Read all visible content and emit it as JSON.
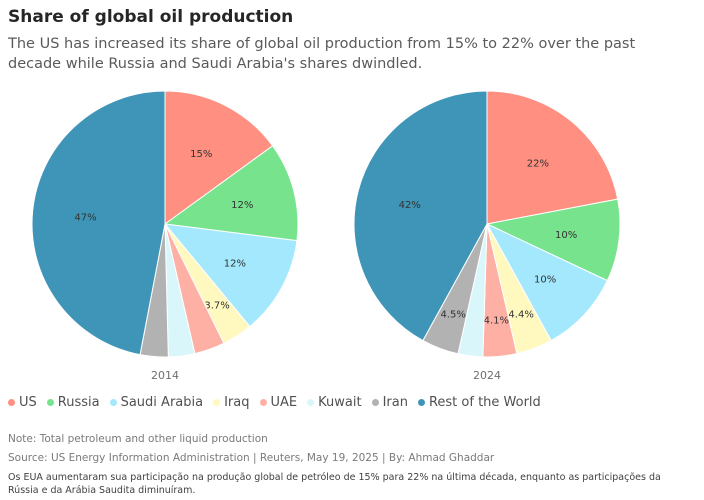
{
  "header": {
    "title": "Share of global oil production",
    "subtitle": "The US has increased its share of global oil production from 15% to 22% over the past decade while Russia and Saudi Arabia's shares dwindled."
  },
  "chart_data": [
    {
      "type": "pie",
      "year_label": "2014",
      "slices": [
        {
          "name": "US",
          "value": 15,
          "label": "15%",
          "color": "#ff8f80"
        },
        {
          "name": "Russia",
          "value": 12,
          "label": "12%",
          "color": "#77e38c"
        },
        {
          "name": "Saudi Arabia",
          "value": 12,
          "label": "12%",
          "color": "#a3e8fd"
        },
        {
          "name": "Iraq",
          "value": 3.7,
          "label": "3.7%",
          "color": "#fff9c0"
        },
        {
          "name": "UAE",
          "value": 3.7,
          "label": "",
          "color": "#ffb0a4"
        },
        {
          "name": "Kuwait",
          "value": 3.2,
          "label": "",
          "color": "#d9f6fb"
        },
        {
          "name": "Iran",
          "value": 3.4,
          "label": "",
          "color": "#b2b2b2"
        },
        {
          "name": "Rest of the World",
          "value": 47,
          "label": "47%",
          "color": "#3f95b7"
        }
      ]
    },
    {
      "type": "pie",
      "year_label": "2024",
      "slices": [
        {
          "name": "US",
          "value": 22,
          "label": "22%",
          "color": "#ff8f80"
        },
        {
          "name": "Russia",
          "value": 10,
          "label": "10%",
          "color": "#77e38c"
        },
        {
          "name": "Saudi Arabia",
          "value": 10,
          "label": "10%",
          "color": "#a3e8fd"
        },
        {
          "name": "Iraq",
          "value": 4.4,
          "label": "4.4%",
          "color": "#fff9c0"
        },
        {
          "name": "UAE",
          "value": 4.1,
          "label": "4.1%",
          "color": "#ffb0a4"
        },
        {
          "name": "Kuwait",
          "value": 3.0,
          "label": "",
          "color": "#d9f6fb"
        },
        {
          "name": "Iran",
          "value": 4.5,
          "label": "4.5%",
          "color": "#b2b2b2"
        },
        {
          "name": "Rest of the World",
          "value": 42,
          "label": "42%",
          "color": "#3f95b7"
        }
      ]
    }
  ],
  "legend": {
    "items": [
      {
        "label": "US",
        "color": "#ff8f80"
      },
      {
        "label": "Russia",
        "color": "#77e38c"
      },
      {
        "label": "Saudi Arabia",
        "color": "#a3e8fd"
      },
      {
        "label": "Iraq",
        "color": "#fff9c0"
      },
      {
        "label": "UAE",
        "color": "#ffb0a4"
      },
      {
        "label": "Kuwait",
        "color": "#d9f6fb"
      },
      {
        "label": "Iran",
        "color": "#b2b2b2"
      },
      {
        "label": "Rest of the World",
        "color": "#3f95b7"
      }
    ]
  },
  "footer": {
    "note": "Note: Total petroleum and other liquid production",
    "source": "Source: US Energy Information Administration | Reuters, May 19, 2025 | By: Ahmad Ghaddar",
    "translation": "Os EUA aumentaram sua participação na produção global de petróleo de 15% para 22% na última década, enquanto as participações da Rússia e da Arábia Saudita diminuíram."
  }
}
